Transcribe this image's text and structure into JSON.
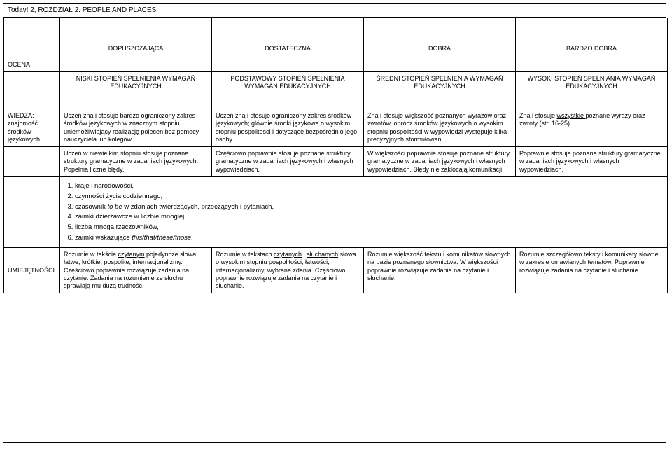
{
  "title": "Today! 2, ROZDZIAŁ 2. PEOPLE AND PLACES",
  "label_ocena": "OCENA",
  "grades": {
    "g1": "DOPUSZCZAJĄCA",
    "g2": "DOSTATECZNA",
    "g3": "DOBRA",
    "g4": "BARDZO DOBRA"
  },
  "levels": {
    "l1": "NISKI STOPIEŃ SPEŁNIENIA WYMAGAŃ EDUKACYJNYCH",
    "l2": "PODSTAWOWY STOPIEŃ SPEŁNIENIA WYMAGAŃ EDUKACYJNYCH",
    "l3": "ŚREDNI STOPIEŃ SPEŁNIENIA WYMAGAŃ EDUKACYJNYCH",
    "l4": "WYSOKI STOPIEŃ SPEŁNIANIA WYMAGAŃ EDUKACYJNYCH"
  },
  "row1_label_a": "WIEDZA:",
  "row1_label_b": "znajomość środków językowych",
  "row1": {
    "c1": "Uczeń zna i stosuje bardzo ograniczony zakres środków językowych w znacznym stopniu uniemożliwiający realizację poleceń bez pomocy nauczyciela lub kolegów.",
    "c2": "Uczeń zna i stosuje ograniczony zakres środków językowych; głównie środki językowe o wysokim stopniu pospolitości i dotyczące bezpośrednio jego osoby",
    "c3": "Zna i stosuje większość poznanych wyrazów oraz zwrotów, oprócz środków językowych o wysokim stopniu pospolitości w wypowiedzi występuje kilka precyzyjnych sformułowań.",
    "c4a": "Zna i stosuje ",
    "c4u": "wszystkie ",
    "c4b": "poznane wyrazy oraz zwroty (str. 16-25)"
  },
  "row2": {
    "c1": "Uczeń w niewielkim stopniu stosuje poznane struktury gramatyczne w zadaniach językowych. Popełnia liczne błędy.",
    "c2": "Częściowo poprawnie stosuje poznane struktury gramatyczne w zadaniach językowych i własnych wypowiedziach.",
    "c3": "W większości poprawnie stosuje poznane struktury gramatyczne w zadaniach językowych i własnych wypowiedziach. Błędy nie zakłócają komunikacji.",
    "c4": "Poprawnie stosuje poznane struktury gramatyczne w zadaniach językowych i własnych wypowiedziach."
  },
  "topics": {
    "t1": "kraje i narodowości,",
    "t2": "czynności życia codziennego,",
    "t3a": "czasownik ",
    "t3i": "to be",
    "t3b": " w zdaniach twierdzących, przeczących i pytaniach,",
    "t4": "zaimki dzierżawcze w liczbie mnogiej,",
    "t5": "liczba mnoga rzeczowników,",
    "t6a": "zaimki wskazujące ",
    "t6i": "this/that/these/those."
  },
  "row4_label": "UMIEJĘTNOŚCI",
  "row4": {
    "c1a": "Rozumie w tekście ",
    "c1u": "czytanym",
    "c1b": " pojedyncze słowa: łatwe, krótkie, pospolite, internacjonalizmy. Częściowo poprawnie rozwiązuje zadania na czytanie. Zadania na rozumienie ze słuchu sprawiają mu dużą trudność.",
    "c2a": "Rozumie w tekstach ",
    "c2u1": "czytanych",
    "c2m": " i ",
    "c2u2": "słuchanych",
    "c2b": " słowa o wysokim stopniu pospolitości, łatwości, internacjonalizmy, wybrane zdania. Częściowo poprawnie rozwiązuje zadania na czytanie i słuchanie.",
    "c3": "Rozumie większość tekstu i komunikatów słownych na bazie poznanego słownictwa. W większości poprawnie rozwiązuje zadania na czytanie i słuchanie.",
    "c4": "Rozumie szczegółowo teksty i komunikaty słowne w zakresie omawianych tematów. Poprawnie rozwiązuje zadania na czytanie i słuchanie."
  }
}
